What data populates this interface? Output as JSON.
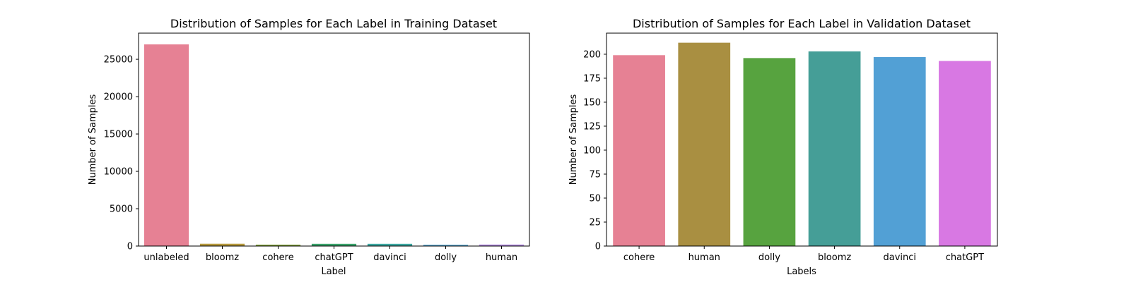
{
  "chart_data": [
    {
      "type": "bar",
      "title": "Distribution of Samples for Each Label in Training Dataset",
      "xlabel": "Label",
      "ylabel": "Number of Samples",
      "categories": [
        "unlabeled",
        "bloomz",
        "cohere",
        "chatGPT",
        "davinci",
        "dolly",
        "human"
      ],
      "values": [
        27000,
        310,
        180,
        300,
        300,
        160,
        200
      ],
      "colors": [
        "#e68194",
        "#b79a3e",
        "#7e9f32",
        "#3ba36b",
        "#3ea8a1",
        "#47a0cf",
        "#b58ae4"
      ],
      "ylim": [
        0,
        28500
      ],
      "yticks": [
        0,
        5000,
        10000,
        15000,
        20000,
        25000
      ],
      "grid": false
    },
    {
      "type": "bar",
      "title": "Distribution of Samples for Each Label in Validation Dataset",
      "xlabel": "Labels",
      "ylabel": "Number of Samples",
      "categories": [
        "cohere",
        "human",
        "dolly",
        "bloomz",
        "davinci",
        "chatGPT"
      ],
      "values": [
        199,
        212,
        196,
        203,
        197,
        193
      ],
      "colors": [
        "#e68194",
        "#a98f41",
        "#57a33f",
        "#459e97",
        "#52a0d5",
        "#d878e3"
      ],
      "ylim": [
        0,
        222
      ],
      "yticks": [
        0,
        25,
        50,
        75,
        100,
        125,
        150,
        175,
        200
      ],
      "grid": false
    }
  ]
}
